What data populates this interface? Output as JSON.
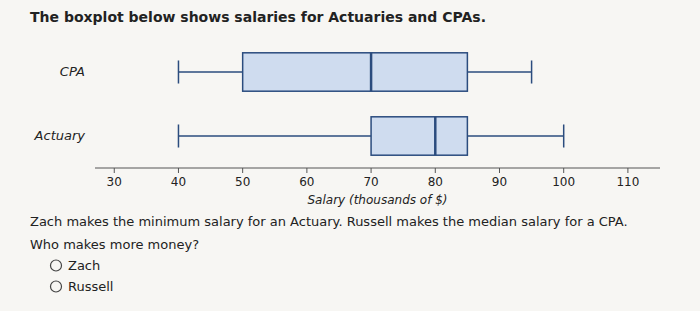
{
  "chart_data": {
    "type": "boxplot",
    "title": "The boxplot below shows salaries for Actuaries and CPAs.",
    "xlabel": "Salary (thousands of $)",
    "categories": [
      "CPA",
      "Actuary"
    ],
    "values": [
      {
        "min": 40,
        "q1": 50,
        "median": 70,
        "q3": 85,
        "max": 95
      },
      {
        "min": 40,
        "q1": 70,
        "median": 80,
        "q3": 85,
        "max": 100
      }
    ],
    "xlim": [
      27,
      115
    ],
    "xticks": [
      30,
      40,
      50,
      60,
      70,
      80,
      90,
      100,
      110
    ],
    "grid": false,
    "annotation": "Zach makes the minimum salary for an Actuary. Russell makes the median salary for a CPA.",
    "question": "Who makes more money?",
    "choices": [
      "Zach",
      "Russell"
    ]
  }
}
